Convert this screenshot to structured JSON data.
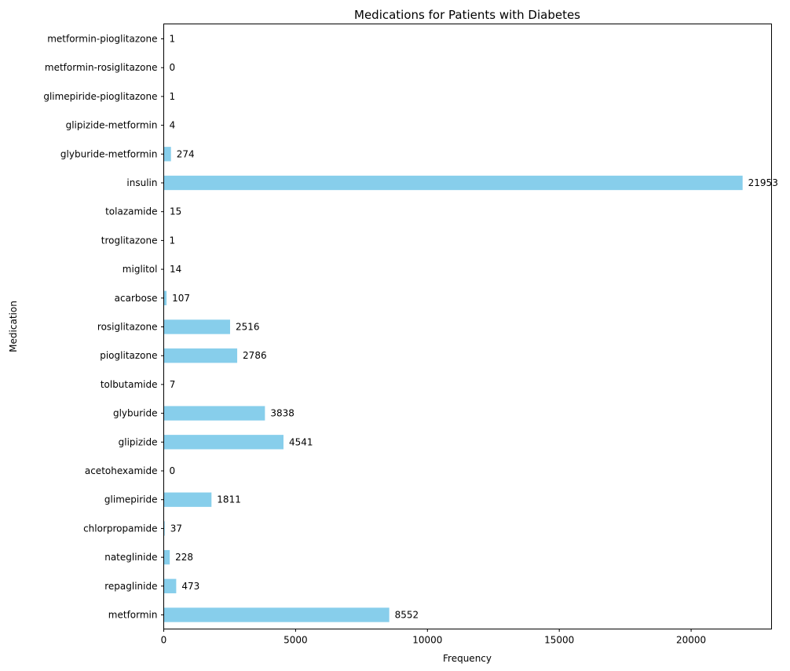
{
  "chart_data": {
    "type": "bar",
    "orientation": "horizontal",
    "title": "Medications for Patients with Diabetes",
    "xlabel": "Frequency",
    "ylabel": "Medication",
    "xlim": [
      0,
      23050
    ],
    "xticks": [
      0,
      5000,
      10000,
      15000,
      20000
    ],
    "grid": false,
    "bar_color": "#87CEEB",
    "categories": [
      "metformin",
      "repaglinide",
      "nateglinide",
      "chlorpropamide",
      "glimepiride",
      "acetohexamide",
      "glipizide",
      "glyburide",
      "tolbutamide",
      "pioglitazone",
      "rosiglitazone",
      "acarbose",
      "miglitol",
      "troglitazone",
      "tolazamide",
      "insulin",
      "glyburide-metformin",
      "glipizide-metformin",
      "glimepiride-pioglitazone",
      "metformin-rosiglitazone",
      "metformin-pioglitazone"
    ],
    "values": [
      8552,
      473,
      228,
      37,
      1811,
      0,
      4541,
      3838,
      7,
      2786,
      2516,
      107,
      14,
      1,
      15,
      21953,
      274,
      4,
      1,
      0,
      1
    ]
  }
}
